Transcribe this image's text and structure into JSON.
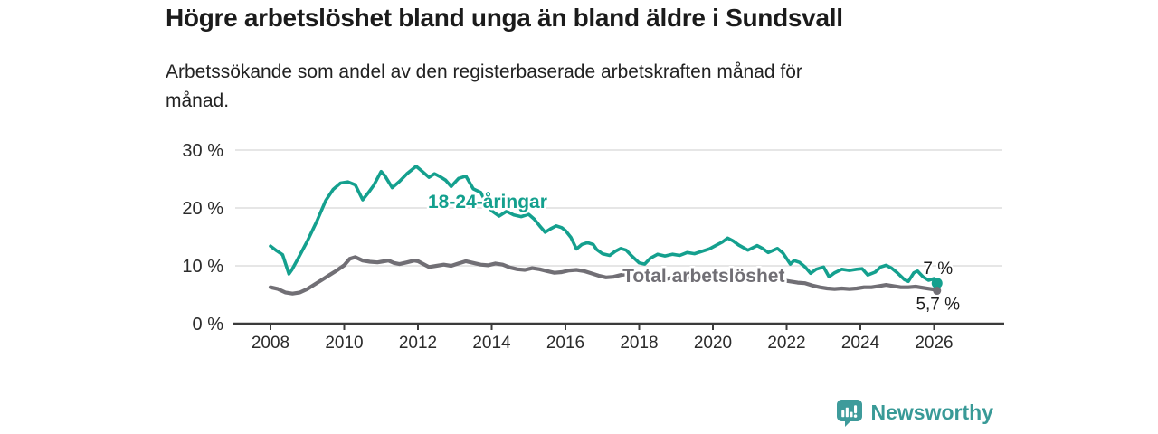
{
  "header": {
    "title": "Högre arbetslöshet bland unga än bland äldre i Sundsvall",
    "subtitle": "Arbetssökande som andel av den registerbaserade arbetskraften månad för månad."
  },
  "chart_data": {
    "type": "line",
    "title": "Högre arbetslöshet bland unga än bland äldre i Sundsvall",
    "subtitle": "Arbetssökande som andel av den registerbaserade arbetskraften månad för månad.",
    "unit": "%",
    "grid": true,
    "legend_position": "inline-labels",
    "x_axis": {
      "tick_years": [
        2008,
        2010,
        2012,
        2014,
        2016,
        2018,
        2020,
        2022,
        2024,
        2026
      ]
    },
    "y_axis": {
      "ticks": [
        0,
        10,
        20,
        30
      ],
      "labels": [
        "0 %",
        "10 %",
        "20 %",
        "30 %"
      ],
      "min": 0,
      "max": 30
    },
    "colors": {
      "youth": "#14a08e",
      "total": "#716f75",
      "grid": "#d8d8d8",
      "axis": "#3b3b3b",
      "annotation": "#1b1b1b"
    },
    "series": [
      {
        "name": "18-24-åringar",
        "color": "#14a08e",
        "label": {
          "text": "18-24-åringar",
          "x": 2012.27,
          "y": 20.0
        },
        "end_label": "7 %",
        "end_label_side": "above",
        "points": [
          [
            2008.0,
            13.4
          ],
          [
            2008.17,
            12.6
          ],
          [
            2008.33,
            11.9
          ],
          [
            2008.5,
            8.6
          ],
          [
            2008.58,
            9.3
          ],
          [
            2008.75,
            11.3
          ],
          [
            2009.0,
            14.3
          ],
          [
            2009.25,
            17.6
          ],
          [
            2009.5,
            21.3
          ],
          [
            2009.7,
            23.2
          ],
          [
            2009.9,
            24.3
          ],
          [
            2010.1,
            24.5
          ],
          [
            2010.3,
            24.0
          ],
          [
            2010.5,
            21.4
          ],
          [
            2010.65,
            22.6
          ],
          [
            2010.8,
            23.9
          ],
          [
            2011.0,
            26.3
          ],
          [
            2011.1,
            25.6
          ],
          [
            2011.3,
            23.5
          ],
          [
            2011.5,
            24.6
          ],
          [
            2011.7,
            25.9
          ],
          [
            2011.95,
            27.2
          ],
          [
            2012.1,
            26.4
          ],
          [
            2012.3,
            25.3
          ],
          [
            2012.45,
            25.9
          ],
          [
            2012.6,
            25.4
          ],
          [
            2012.75,
            24.8
          ],
          [
            2012.9,
            23.7
          ],
          [
            2013.1,
            25.1
          ],
          [
            2013.3,
            25.5
          ],
          [
            2013.5,
            23.3
          ],
          [
            2013.7,
            22.7
          ],
          [
            2013.85,
            20.9
          ],
          [
            2014.0,
            19.5
          ],
          [
            2014.2,
            18.6
          ],
          [
            2014.4,
            19.4
          ],
          [
            2014.6,
            18.8
          ],
          [
            2014.8,
            18.5
          ],
          [
            2015.0,
            18.9
          ],
          [
            2015.15,
            18.1
          ],
          [
            2015.3,
            16.9
          ],
          [
            2015.45,
            15.8
          ],
          [
            2015.6,
            16.4
          ],
          [
            2015.75,
            16.9
          ],
          [
            2015.9,
            16.6
          ],
          [
            2016.0,
            16.1
          ],
          [
            2016.15,
            14.9
          ],
          [
            2016.3,
            12.9
          ],
          [
            2016.45,
            13.7
          ],
          [
            2016.6,
            14.0
          ],
          [
            2016.75,
            13.7
          ],
          [
            2016.85,
            12.8
          ],
          [
            2017.0,
            12.1
          ],
          [
            2017.2,
            11.8
          ],
          [
            2017.35,
            12.5
          ],
          [
            2017.5,
            13.0
          ],
          [
            2017.65,
            12.7
          ],
          [
            2017.8,
            11.7
          ],
          [
            2018.0,
            10.5
          ],
          [
            2018.15,
            10.3
          ],
          [
            2018.3,
            11.3
          ],
          [
            2018.5,
            12.0
          ],
          [
            2018.7,
            11.7
          ],
          [
            2018.9,
            12.0
          ],
          [
            2019.1,
            11.8
          ],
          [
            2019.3,
            12.3
          ],
          [
            2019.5,
            12.1
          ],
          [
            2019.7,
            12.5
          ],
          [
            2019.9,
            12.9
          ],
          [
            2020.1,
            13.6
          ],
          [
            2020.25,
            14.1
          ],
          [
            2020.4,
            14.8
          ],
          [
            2020.55,
            14.3
          ],
          [
            2020.7,
            13.6
          ],
          [
            2020.95,
            12.7
          ],
          [
            2021.2,
            13.5
          ],
          [
            2021.35,
            13.0
          ],
          [
            2021.5,
            12.3
          ],
          [
            2021.75,
            13.0
          ],
          [
            2021.9,
            12.2
          ],
          [
            2022.1,
            10.3
          ],
          [
            2022.2,
            10.9
          ],
          [
            2022.35,
            10.6
          ],
          [
            2022.5,
            9.8
          ],
          [
            2022.65,
            8.7
          ],
          [
            2022.8,
            9.4
          ],
          [
            2023.0,
            9.8
          ],
          [
            2023.15,
            8.1
          ],
          [
            2023.3,
            8.8
          ],
          [
            2023.5,
            9.4
          ],
          [
            2023.7,
            9.2
          ],
          [
            2023.9,
            9.4
          ],
          [
            2024.05,
            9.5
          ],
          [
            2024.2,
            8.4
          ],
          [
            2024.4,
            8.9
          ],
          [
            2024.55,
            9.8
          ],
          [
            2024.7,
            10.1
          ],
          [
            2024.85,
            9.6
          ],
          [
            2025.0,
            8.8
          ],
          [
            2025.2,
            7.6
          ],
          [
            2025.3,
            7.3
          ],
          [
            2025.45,
            8.8
          ],
          [
            2025.55,
            9.1
          ],
          [
            2025.7,
            8.1
          ],
          [
            2025.85,
            7.5
          ],
          [
            2026.0,
            7.8
          ],
          [
            2026.08,
            7.0
          ]
        ]
      },
      {
        "name": "Total arbetslöshet",
        "color": "#716f75",
        "label": {
          "text": "Total arbetslöshet",
          "x": 2017.55,
          "y": 7.2
        },
        "end_label": "5,7 %",
        "end_label_side": "below",
        "points": [
          [
            2008.0,
            6.3
          ],
          [
            2008.2,
            6.0
          ],
          [
            2008.4,
            5.4
          ],
          [
            2008.6,
            5.2
          ],
          [
            2008.8,
            5.4
          ],
          [
            2009.0,
            6.0
          ],
          [
            2009.2,
            6.8
          ],
          [
            2009.4,
            7.6
          ],
          [
            2009.6,
            8.4
          ],
          [
            2009.8,
            9.2
          ],
          [
            2010.0,
            10.1
          ],
          [
            2010.15,
            11.2
          ],
          [
            2010.3,
            11.5
          ],
          [
            2010.5,
            10.9
          ],
          [
            2010.7,
            10.7
          ],
          [
            2010.9,
            10.6
          ],
          [
            2011.0,
            10.7
          ],
          [
            2011.2,
            10.9
          ],
          [
            2011.35,
            10.5
          ],
          [
            2011.5,
            10.3
          ],
          [
            2011.7,
            10.6
          ],
          [
            2011.9,
            10.9
          ],
          [
            2012.0,
            10.8
          ],
          [
            2012.15,
            10.3
          ],
          [
            2012.3,
            9.8
          ],
          [
            2012.5,
            10.0
          ],
          [
            2012.7,
            10.2
          ],
          [
            2012.9,
            10.0
          ],
          [
            2013.1,
            10.4
          ],
          [
            2013.3,
            10.8
          ],
          [
            2013.5,
            10.5
          ],
          [
            2013.7,
            10.2
          ],
          [
            2013.9,
            10.1
          ],
          [
            2014.1,
            10.4
          ],
          [
            2014.3,
            10.2
          ],
          [
            2014.5,
            9.7
          ],
          [
            2014.7,
            9.4
          ],
          [
            2014.9,
            9.3
          ],
          [
            2015.1,
            9.6
          ],
          [
            2015.3,
            9.4
          ],
          [
            2015.5,
            9.1
          ],
          [
            2015.7,
            8.8
          ],
          [
            2015.9,
            8.9
          ],
          [
            2016.1,
            9.2
          ],
          [
            2016.3,
            9.3
          ],
          [
            2016.5,
            9.1
          ],
          [
            2016.7,
            8.7
          ],
          [
            2016.9,
            8.3
          ],
          [
            2017.1,
            8.0
          ],
          [
            2017.3,
            8.1
          ],
          [
            2017.5,
            8.4
          ],
          [
            2017.7,
            8.6
          ],
          [
            2017.9,
            8.4
          ],
          [
            2018.1,
            8.0
          ],
          [
            2018.3,
            7.6
          ],
          [
            2018.5,
            7.4
          ],
          [
            2018.7,
            7.7
          ],
          [
            2018.9,
            7.9
          ],
          [
            2019.1,
            8.0
          ],
          [
            2019.3,
            7.9
          ],
          [
            2019.5,
            8.0
          ],
          [
            2019.7,
            8.2
          ],
          [
            2019.9,
            8.3
          ],
          [
            2020.1,
            8.5
          ],
          [
            2020.3,
            8.8
          ],
          [
            2020.5,
            9.0
          ],
          [
            2020.7,
            8.8
          ],
          [
            2020.9,
            8.6
          ],
          [
            2021.1,
            8.4
          ],
          [
            2021.3,
            8.2
          ],
          [
            2021.5,
            8.0
          ],
          [
            2021.7,
            7.7
          ],
          [
            2021.9,
            7.5
          ],
          [
            2022.1,
            7.3
          ],
          [
            2022.3,
            7.1
          ],
          [
            2022.5,
            7.0
          ],
          [
            2022.7,
            6.6
          ],
          [
            2022.9,
            6.3
          ],
          [
            2023.1,
            6.1
          ],
          [
            2023.3,
            6.0
          ],
          [
            2023.5,
            6.1
          ],
          [
            2023.7,
            6.0
          ],
          [
            2023.9,
            6.1
          ],
          [
            2024.1,
            6.3
          ],
          [
            2024.3,
            6.3
          ],
          [
            2024.5,
            6.5
          ],
          [
            2024.7,
            6.7
          ],
          [
            2024.9,
            6.5
          ],
          [
            2025.1,
            6.3
          ],
          [
            2025.3,
            6.3
          ],
          [
            2025.5,
            6.4
          ],
          [
            2025.7,
            6.2
          ],
          [
            2025.9,
            6.0
          ],
          [
            2026.0,
            5.9
          ],
          [
            2026.08,
            5.7
          ]
        ]
      }
    ]
  },
  "footer": {
    "brand": "Newsworthy",
    "brand_color": "#399a97",
    "logo_icon": "bar-chart-speech-bubble-icon"
  }
}
